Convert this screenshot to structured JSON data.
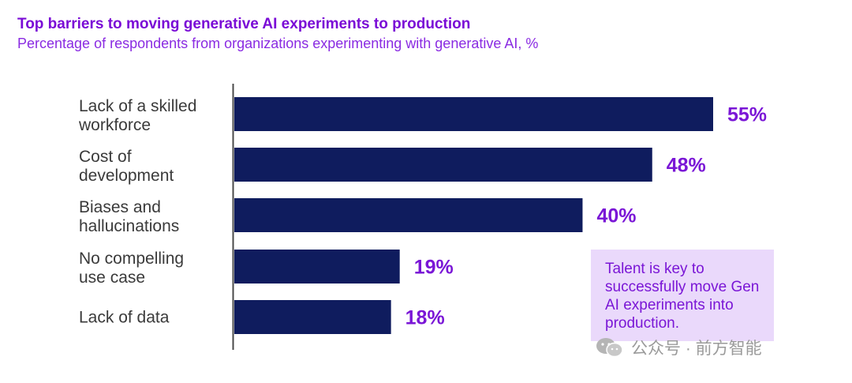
{
  "header": {
    "title": "Top barriers to moving generative AI experiments to production",
    "subtitle": "Percentage of respondents from organizations experimenting with generative AI, %"
  },
  "chart_data": {
    "type": "bar",
    "orientation": "horizontal",
    "categories": [
      [
        "Lack of a skilled",
        "workforce"
      ],
      [
        "Cost of",
        "development"
      ],
      [
        "Biases and",
        "hallucinations"
      ],
      [
        "No compelling",
        "use case"
      ],
      [
        "Lack of data"
      ]
    ],
    "values": [
      55,
      48,
      40,
      19,
      18
    ],
    "value_labels": [
      "55%",
      "48%",
      "40%",
      "19%",
      "18%"
    ],
    "xlim": [
      0,
      55
    ],
    "grid": false,
    "bar_color": "#0f1c5e",
    "label_color": "#7a16d6"
  },
  "callout": {
    "text": "Talent is key to successfully move Gen AI experiments into production."
  },
  "watermark": {
    "text": "公众号 · 前方智能"
  }
}
